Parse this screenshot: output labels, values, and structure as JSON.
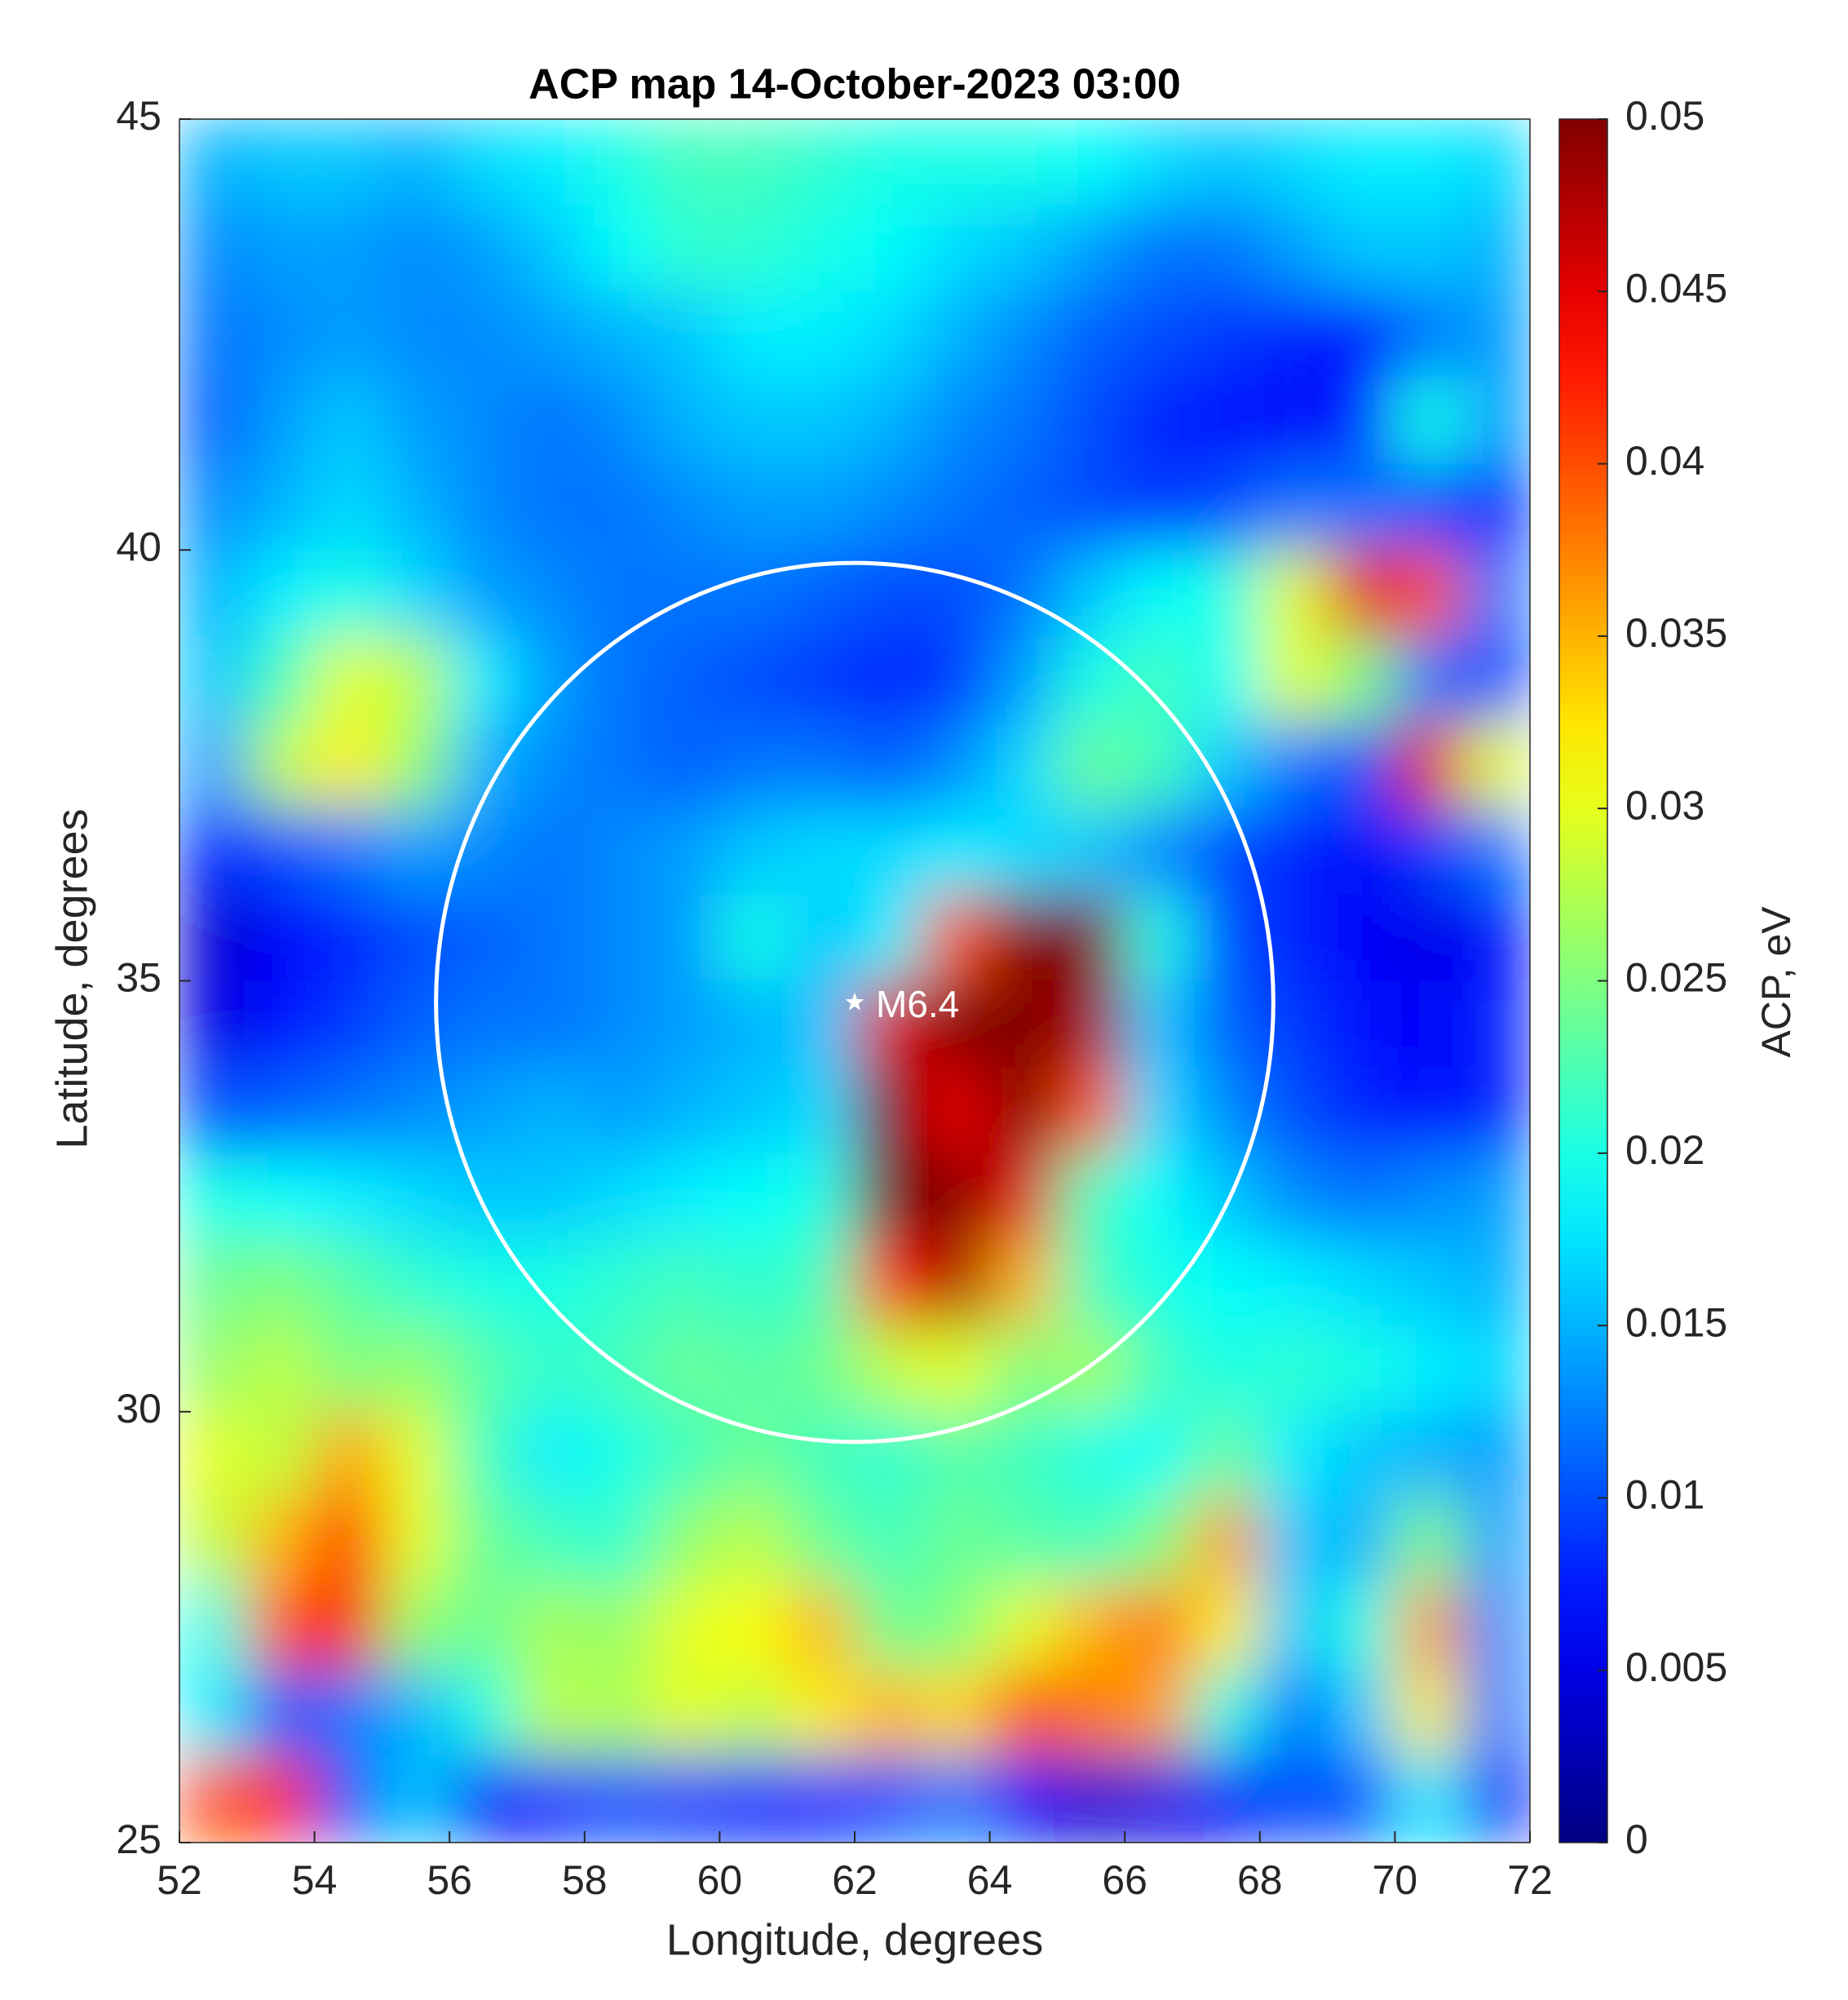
{
  "chart_data": {
    "type": "heatmap",
    "title": "ACP map 14-October-2023 03:00",
    "x_label": "Longitude, degrees",
    "y_label": "Latitude, degrees",
    "colorbar_label": "ACP, eV",
    "colormap": "jet",
    "xlim": [
      52,
      72
    ],
    "ylim": [
      25,
      45
    ],
    "xticks": [
      52,
      54,
      56,
      58,
      60,
      62,
      64,
      66,
      68,
      70,
      72
    ],
    "yticks": [
      25,
      30,
      35,
      40,
      45
    ],
    "clim": [
      0,
      0.05
    ],
    "cticks": [
      0,
      0.005,
      0.01,
      0.015,
      0.02,
      0.025,
      0.03,
      0.035,
      0.04,
      0.045,
      0.05
    ],
    "x": [
      52.5,
      53.5,
      54.5,
      55.5,
      56.5,
      57.5,
      58.5,
      59.5,
      60.5,
      61.5,
      62.5,
      63.5,
      64.5,
      65.5,
      66.5,
      67.5,
      68.5,
      69.5,
      70.5,
      71.5
    ],
    "y": [
      44.5,
      43.5,
      42.5,
      41.5,
      40.5,
      39.5,
      38.5,
      37.5,
      36.5,
      35.5,
      34.5,
      33.5,
      32.5,
      31.5,
      30.5,
      29.5,
      28.5,
      27.5,
      26.5,
      25.5
    ],
    "z": [
      [
        0.015,
        0.016,
        0.016,
        0.015,
        0.017,
        0.018,
        0.02,
        0.022,
        0.022,
        0.021,
        0.02,
        0.02,
        0.02,
        0.019,
        0.017,
        0.016,
        0.017,
        0.018,
        0.018,
        0.017
      ],
      [
        0.013,
        0.014,
        0.014,
        0.013,
        0.014,
        0.016,
        0.019,
        0.021,
        0.021,
        0.02,
        0.019,
        0.017,
        0.016,
        0.014,
        0.012,
        0.012,
        0.014,
        0.016,
        0.016,
        0.015
      ],
      [
        0.012,
        0.013,
        0.014,
        0.013,
        0.013,
        0.014,
        0.015,
        0.016,
        0.018,
        0.018,
        0.017,
        0.015,
        0.013,
        0.011,
        0.01,
        0.009,
        0.008,
        0.007,
        0.012,
        0.014
      ],
      [
        0.011,
        0.014,
        0.016,
        0.014,
        0.013,
        0.012,
        0.013,
        0.015,
        0.016,
        0.016,
        0.015,
        0.013,
        0.012,
        0.01,
        0.008,
        0.007,
        0.006,
        0.008,
        0.02,
        0.014
      ],
      [
        0.013,
        0.015,
        0.017,
        0.015,
        0.013,
        0.012,
        0.012,
        0.013,
        0.014,
        0.014,
        0.013,
        0.012,
        0.011,
        0.01,
        0.009,
        0.01,
        0.012,
        0.012,
        0.01,
        0.008
      ],
      [
        0.015,
        0.018,
        0.02,
        0.017,
        0.014,
        0.013,
        0.012,
        0.012,
        0.012,
        0.011,
        0.01,
        0.01,
        0.012,
        0.016,
        0.019,
        0.02,
        0.03,
        0.045,
        0.04,
        0.012
      ],
      [
        0.016,
        0.022,
        0.03,
        0.028,
        0.018,
        0.014,
        0.012,
        0.011,
        0.01,
        0.009,
        0.008,
        0.009,
        0.014,
        0.02,
        0.022,
        0.019,
        0.03,
        0.025,
        0.012,
        0.01
      ],
      [
        0.014,
        0.028,
        0.032,
        0.026,
        0.015,
        0.013,
        0.012,
        0.011,
        0.012,
        0.012,
        0.011,
        0.013,
        0.017,
        0.024,
        0.022,
        0.016,
        0.012,
        0.01,
        0.045,
        0.03
      ],
      [
        0.008,
        0.01,
        0.012,
        0.014,
        0.013,
        0.012,
        0.013,
        0.014,
        0.016,
        0.017,
        0.017,
        0.018,
        0.017,
        0.016,
        0.013,
        0.01,
        0.008,
        0.006,
        0.009,
        0.012
      ],
      [
        0.004,
        0.006,
        0.008,
        0.01,
        0.011,
        0.012,
        0.013,
        0.014,
        0.02,
        0.016,
        0.018,
        0.04,
        0.05,
        0.05,
        0.02,
        0.01,
        0.008,
        0.006,
        0.005,
        0.007
      ],
      [
        0.005,
        0.007,
        0.009,
        0.011,
        0.012,
        0.012,
        0.013,
        0.014,
        0.015,
        0.016,
        0.045,
        0.05,
        0.05,
        0.048,
        0.016,
        0.011,
        0.009,
        0.007,
        0.006,
        0.008
      ],
      [
        0.01,
        0.011,
        0.012,
        0.013,
        0.014,
        0.015,
        0.014,
        0.015,
        0.016,
        0.017,
        0.05,
        0.045,
        0.05,
        0.04,
        0.017,
        0.013,
        0.01,
        0.008,
        0.007,
        0.008
      ],
      [
        0.02,
        0.019,
        0.018,
        0.017,
        0.016,
        0.016,
        0.017,
        0.018,
        0.019,
        0.02,
        0.05,
        0.05,
        0.045,
        0.022,
        0.019,
        0.016,
        0.013,
        0.012,
        0.013,
        0.014
      ],
      [
        0.024,
        0.025,
        0.023,
        0.021,
        0.02,
        0.02,
        0.021,
        0.022,
        0.021,
        0.022,
        0.042,
        0.048,
        0.035,
        0.022,
        0.02,
        0.019,
        0.018,
        0.017,
        0.016,
        0.015
      ],
      [
        0.026,
        0.028,
        0.025,
        0.026,
        0.023,
        0.021,
        0.022,
        0.024,
        0.023,
        0.024,
        0.028,
        0.03,
        0.025,
        0.027,
        0.022,
        0.02,
        0.021,
        0.02,
        0.018,
        0.017
      ],
      [
        0.03,
        0.028,
        0.036,
        0.03,
        0.022,
        0.018,
        0.02,
        0.022,
        0.024,
        0.022,
        0.021,
        0.023,
        0.022,
        0.02,
        0.019,
        0.024,
        0.018,
        0.016,
        0.015,
        0.014
      ],
      [
        0.028,
        0.035,
        0.042,
        0.03,
        0.024,
        0.022,
        0.021,
        0.026,
        0.028,
        0.024,
        0.022,
        0.024,
        0.023,
        0.022,
        0.025,
        0.036,
        0.016,
        0.015,
        0.025,
        0.014
      ],
      [
        0.02,
        0.04,
        0.044,
        0.026,
        0.024,
        0.027,
        0.026,
        0.03,
        0.031,
        0.035,
        0.024,
        0.025,
        0.03,
        0.035,
        0.038,
        0.032,
        0.016,
        0.02,
        0.036,
        0.013
      ],
      [
        0.018,
        0.01,
        0.012,
        0.015,
        0.02,
        0.028,
        0.027,
        0.03,
        0.028,
        0.032,
        0.035,
        0.033,
        0.04,
        0.038,
        0.036,
        0.02,
        0.012,
        0.016,
        0.032,
        0.012
      ],
      [
        0.04,
        0.042,
        0.01,
        0.016,
        0.006,
        0.008,
        0.01,
        0.009,
        0.008,
        0.008,
        0.01,
        0.012,
        0.006,
        0.004,
        0.005,
        0.006,
        0.01,
        0.01,
        0.018,
        0.006
      ]
    ],
    "epicenter": {
      "label": "M6.4",
      "x": 62,
      "y": 34.75
    },
    "circle": {
      "x": 62,
      "y": 34.75,
      "rx": 6.2,
      "ry": 5.1,
      "color": "#ffffff"
    }
  }
}
